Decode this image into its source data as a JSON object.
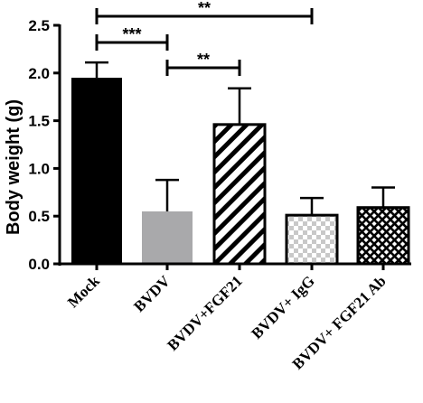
{
  "chart_data": {
    "type": "bar",
    "ylabel": "Body weight (g)",
    "ylim": [
      0,
      2.5
    ],
    "yticks": [
      "0.0",
      "0.5",
      "1.0",
      "1.5",
      "2.0",
      "2.5"
    ],
    "categories": [
      "Mock",
      "BVDV",
      "BVDV+FGF21",
      "BVDV+ IgG",
      "BVDV+ FGF21 Ab"
    ],
    "values": [
      1.95,
      0.55,
      1.46,
      0.51,
      0.59
    ],
    "errors": [
      0.16,
      0.33,
      0.38,
      0.18,
      0.21
    ],
    "bar_fills": [
      "solid-black",
      "solid-gray",
      "diagonal-stripes",
      "checkerboard",
      "crosshatch"
    ],
    "colors": {
      "mock": "#000000",
      "bvdv": "#a9a9ab",
      "checker": "#c8c8c8"
    },
    "significance": [
      {
        "from": "Mock",
        "to": "BVDV",
        "label": "***"
      },
      {
        "from": "BVDV",
        "to": "BVDV+FGF21",
        "label": "**"
      },
      {
        "from": "Mock",
        "to": "BVDV+ IgG",
        "label": "**"
      }
    ]
  }
}
